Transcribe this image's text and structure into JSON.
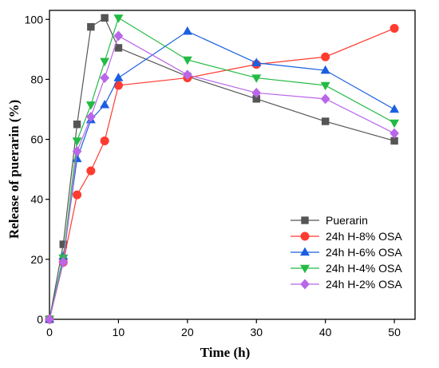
{
  "chart_data": {
    "type": "line",
    "xlabel": "Time (h)",
    "ylabel": "Release of puerarin (%)",
    "xlim": [
      0,
      53
    ],
    "ylim": [
      0,
      103
    ],
    "xticks": [
      0,
      10,
      20,
      30,
      40,
      50
    ],
    "yticks": [
      0,
      20,
      40,
      60,
      80,
      100
    ],
    "grid": false,
    "legend_position": "bottom-right",
    "x": [
      0,
      2,
      4,
      6,
      8,
      10,
      20,
      30,
      40,
      50
    ],
    "series": [
      {
        "name": "Puerarin",
        "color": "#555555",
        "marker": "square",
        "values": [
          0,
          25,
          65,
          97.5,
          100.5,
          90.5,
          81,
          73.5,
          66,
          59.5
        ]
      },
      {
        "name": "24h H-8% OSA",
        "color": "#ff3b30",
        "marker": "circle",
        "values": [
          0,
          19,
          41.5,
          49.5,
          59.5,
          78,
          80.5,
          85,
          87.5,
          97
        ]
      },
      {
        "name": "24h H-6% OSA",
        "color": "#1a5fe0",
        "marker": "triangle-up",
        "values": [
          0,
          21,
          53.5,
          66.5,
          71.5,
          80.5,
          96,
          85.5,
          83,
          70
        ]
      },
      {
        "name": "24h H-4% OSA",
        "color": "#22bb44",
        "marker": "triangle-down",
        "values": [
          0,
          20.5,
          59.5,
          71.5,
          86,
          100.5,
          86.5,
          80.5,
          78,
          65.5
        ]
      },
      {
        "name": "24h H-2% OSA",
        "color": "#b966e8",
        "marker": "diamond",
        "values": [
          0,
          19,
          56,
          67.5,
          80.5,
          94.5,
          81.5,
          75.5,
          73.5,
          62
        ]
      }
    ]
  }
}
